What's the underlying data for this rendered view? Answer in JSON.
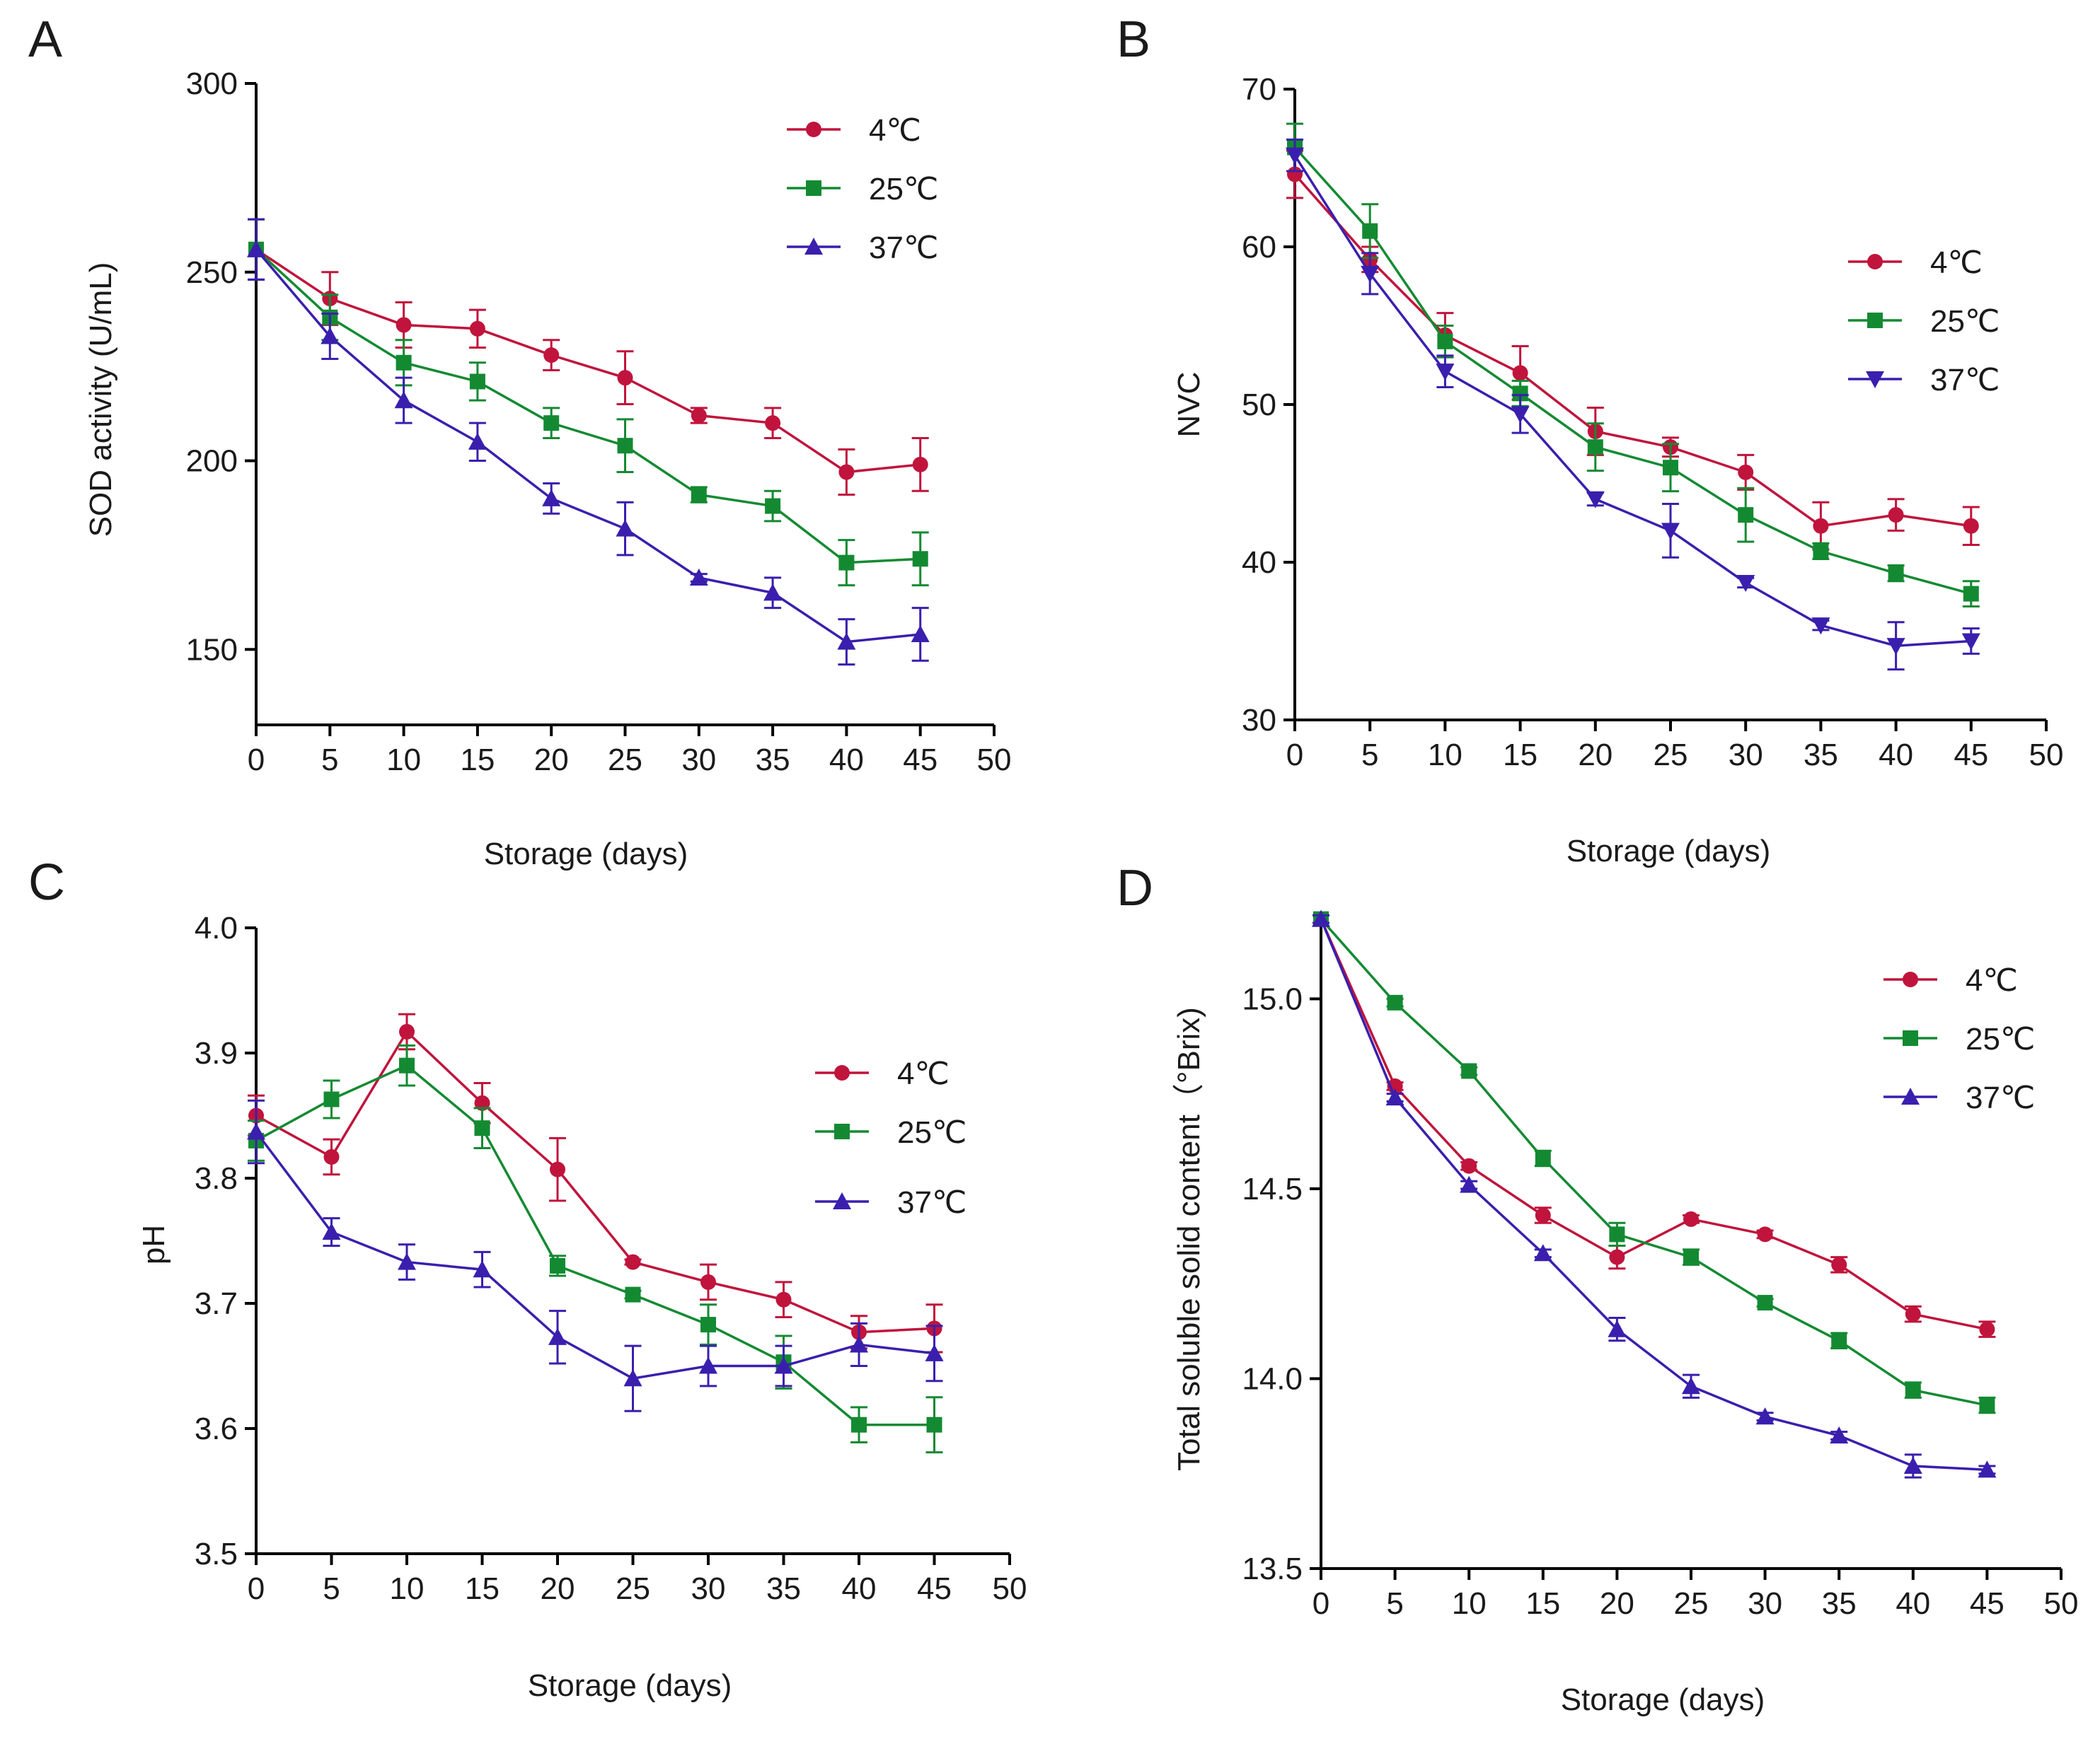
{
  "colors": {
    "c4": "#c0143c",
    "c25": "#138a32",
    "c37": "#3a1fae"
  },
  "chart_data": [
    {
      "type": "line",
      "panel": "A",
      "xlabel": "Storage (days)",
      "ylabel": "SOD activity (U/mL)",
      "xlim": [
        0,
        50
      ],
      "ylim": [
        130,
        300
      ],
      "xticks": [
        0,
        5,
        10,
        15,
        20,
        25,
        30,
        35,
        40,
        45,
        50
      ],
      "yticks": [
        150,
        200,
        250,
        300
      ],
      "legend_position": "top-right",
      "x": [
        0,
        5,
        10,
        15,
        20,
        25,
        30,
        35,
        40,
        45
      ],
      "series": [
        {
          "name": "4℃",
          "color": "#c0143c",
          "marker": "circle",
          "values": [
            256,
            243,
            236,
            235,
            228,
            222,
            212,
            210,
            197,
            199
          ],
          "errors": [
            8,
            7,
            6,
            5,
            4,
            7,
            2,
            4,
            6,
            7
          ]
        },
        {
          "name": "25℃",
          "color": "#138a32",
          "marker": "square",
          "values": [
            256,
            238,
            226,
            221,
            210,
            204,
            191,
            188,
            173,
            174
          ],
          "errors": [
            8,
            6,
            6,
            5,
            4,
            7,
            2,
            4,
            6,
            7
          ]
        },
        {
          "name": "37℃",
          "color": "#3a1fae",
          "marker": "triangle-up",
          "values": [
            256,
            233,
            216,
            205,
            190,
            182,
            169,
            165,
            152,
            154
          ],
          "errors": [
            8,
            6,
            6,
            5,
            4,
            7,
            1,
            4,
            6,
            7
          ]
        }
      ]
    },
    {
      "type": "line",
      "panel": "B",
      "xlabel": "Storage (days)",
      "ylabel": "NVC",
      "xlim": [
        0,
        50
      ],
      "ylim": [
        30,
        70
      ],
      "xticks": [
        0,
        5,
        10,
        15,
        20,
        25,
        30,
        35,
        40,
        45,
        50
      ],
      "yticks": [
        30,
        40,
        50,
        60,
        70
      ],
      "legend_position": "top-right",
      "x": [
        0,
        5,
        10,
        15,
        20,
        25,
        30,
        35,
        40,
        45
      ],
      "series": [
        {
          "name": "4℃",
          "color": "#c0143c",
          "marker": "circle",
          "values": [
            64.6,
            59.2,
            54.4,
            52.0,
            48.3,
            47.3,
            45.7,
            42.3,
            43.0,
            42.3
          ],
          "errors": [
            1.5,
            0.8,
            1.4,
            1.7,
            1.5,
            0.6,
            1.1,
            1.5,
            1.0,
            1.2
          ]
        },
        {
          "name": "25℃",
          "color": "#138a32",
          "marker": "square",
          "values": [
            66.3,
            61.0,
            54.0,
            50.7,
            47.3,
            46.0,
            43.0,
            40.7,
            39.3,
            38.0
          ],
          "errors": [
            1.5,
            1.7,
            1.0,
            0.8,
            1.5,
            1.5,
            1.7,
            0.5,
            0.5,
            0.8
          ]
        },
        {
          "name": "37℃",
          "color": "#3a1fae",
          "marker": "triangle-down",
          "values": [
            65.8,
            58.3,
            52.1,
            49.4,
            44.0,
            42.0,
            38.7,
            36.0,
            34.7,
            35.0
          ],
          "errors": [
            1.0,
            1.3,
            1.0,
            1.2,
            0.4,
            1.7,
            0.3,
            0.3,
            1.5,
            0.8
          ]
        }
      ]
    },
    {
      "type": "line",
      "panel": "C",
      "xlabel": "Storage (days)",
      "ylabel": "pH",
      "xlim": [
        0,
        50
      ],
      "ylim": [
        3.5,
        4.0
      ],
      "xticks": [
        0,
        5,
        10,
        15,
        20,
        25,
        30,
        35,
        40,
        45,
        50
      ],
      "yticks": [
        "3.5",
        "3.6",
        "3.7",
        "3.8",
        "3.9",
        "4.0"
      ],
      "legend_position": "right",
      "x": [
        0,
        5,
        10,
        15,
        20,
        25,
        30,
        35,
        40,
        45
      ],
      "series": [
        {
          "name": "4℃",
          "color": "#c0143c",
          "marker": "circle",
          "values": [
            3.85,
            3.817,
            3.917,
            3.86,
            3.807,
            3.733,
            3.717,
            3.703,
            3.677,
            3.68
          ],
          "errors": [
            0.016,
            0.014,
            0.014,
            0.016,
            0.025,
            0.002,
            0.014,
            0.014,
            0.013,
            0.019
          ]
        },
        {
          "name": "25℃",
          "color": "#138a32",
          "marker": "square",
          "values": [
            3.83,
            3.863,
            3.89,
            3.84,
            3.73,
            3.707,
            3.683,
            3.653,
            3.603,
            3.603
          ],
          "errors": [
            0.016,
            0.015,
            0.016,
            0.016,
            0.008,
            0.003,
            0.016,
            0.021,
            0.014,
            0.022
          ]
        },
        {
          "name": "37℃",
          "color": "#3a1fae",
          "marker": "triangle-up",
          "values": [
            3.837,
            3.757,
            3.733,
            3.727,
            3.673,
            3.64,
            3.65,
            3.65,
            3.667,
            3.66
          ],
          "errors": [
            0.025,
            0.011,
            0.014,
            0.014,
            0.021,
            0.026,
            0.016,
            0.016,
            0.017,
            0.022
          ]
        }
      ]
    },
    {
      "type": "line",
      "panel": "D",
      "xlabel": "Storage (days)",
      "ylabel": "Total soluble solid content（°Brix)",
      "xlim": [
        0,
        50
      ],
      "ylim": [
        13.5,
        15.2
      ],
      "xticks": [
        0,
        5,
        10,
        15,
        20,
        25,
        30,
        35,
        40,
        45,
        50
      ],
      "yticks": [
        "13.5",
        "14.0",
        "14.5",
        "15.0"
      ],
      "legend_position": "top-right",
      "x": [
        0,
        5,
        10,
        15,
        20,
        25,
        30,
        35,
        40,
        45
      ],
      "series": [
        {
          "name": "4℃",
          "color": "#c0143c",
          "marker": "circle",
          "values": [
            15.21,
            14.77,
            14.56,
            14.43,
            14.32,
            14.42,
            14.38,
            14.3,
            14.17,
            14.13
          ],
          "errors": [
            0.01,
            0.01,
            0.01,
            0.02,
            0.03,
            0.01,
            0.01,
            0.02,
            0.02,
            0.02
          ]
        },
        {
          "name": "25℃",
          "color": "#138a32",
          "marker": "square",
          "values": [
            15.21,
            14.99,
            14.81,
            14.58,
            14.38,
            14.32,
            14.2,
            14.1,
            13.97,
            13.93
          ],
          "errors": [
            0.01,
            0.01,
            0.01,
            0.02,
            0.03,
            0.02,
            0.01,
            0.02,
            0.02,
            0.02
          ]
        },
        {
          "name": "37℃",
          "color": "#3a1fae",
          "marker": "triangle-up",
          "values": [
            15.21,
            14.74,
            14.51,
            14.33,
            14.13,
            13.98,
            13.9,
            13.85,
            13.77,
            13.76
          ],
          "errors": [
            0.01,
            0.01,
            0.01,
            0.01,
            0.03,
            0.03,
            0.01,
            0.01,
            0.03,
            0.01
          ]
        }
      ]
    }
  ]
}
